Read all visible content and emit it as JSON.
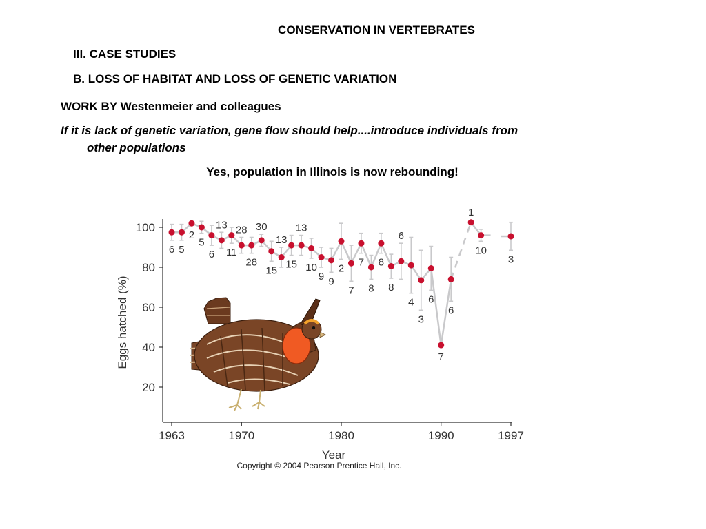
{
  "slide": {
    "title": "CONSERVATION IN VERTEBRATES",
    "section": "III. CASE STUDIES",
    "subsection": "B. LOSS OF HABITAT AND LOSS OF GENETIC VARIATION",
    "work_line": "WORK BY Westenmeier and colleagues",
    "italic_line1": "If it is lack of genetic variation, gene flow should help....introduce individuals from",
    "italic_line2": "other populations",
    "conclusion": "Yes, population in Illinois is now rebounding!"
  },
  "chart_data": {
    "type": "scatter",
    "title": "",
    "xlabel": "Year",
    "ylabel": "Eggs hatched (%)",
    "xlim": [
      1963,
      1997
    ],
    "ylim": [
      10,
      106
    ],
    "x_ticks": [
      1963,
      1970,
      1980,
      1990,
      1997
    ],
    "y_ticks": [
      20,
      40,
      60,
      80,
      100
    ],
    "copyright": "Copyright © 2004 Pearson Prentice Hall, Inc.",
    "illustration": "prairie-chicken-illustration",
    "colors": {
      "point": "#c8102e",
      "line": "#c9c9cb",
      "axis": "#333333"
    },
    "points": [
      {
        "x": 1963,
        "y": 97.5,
        "n": "6",
        "label_pos": "below",
        "err": 4
      },
      {
        "x": 1964,
        "y": 97.5,
        "n": "5",
        "label_pos": "below",
        "err": 4
      },
      {
        "x": 1965,
        "y": 102,
        "n": "2",
        "label_pos": "below",
        "err": 0
      },
      {
        "x": 1966,
        "y": 100,
        "n": "5",
        "label_pos": "below",
        "err": 3
      },
      {
        "x": 1967,
        "y": 96,
        "n": "6",
        "label_pos": "below",
        "err": 5
      },
      {
        "x": 1968,
        "y": 93.5,
        "n": "13",
        "label_pos": "above",
        "err": 4
      },
      {
        "x": 1969,
        "y": 96,
        "n": "11",
        "label_pos": "below",
        "err": 4
      },
      {
        "x": 1970,
        "y": 91,
        "n": "28",
        "label_pos": "above",
        "err": 4
      },
      {
        "x": 1971,
        "y": 91,
        "n": "28",
        "label_pos": "below",
        "err": 4
      },
      {
        "x": 1972,
        "y": 93.5,
        "n": "30",
        "label_pos": "above",
        "err": 3
      },
      {
        "x": 1973,
        "y": 88,
        "n": "15",
        "label_pos": "below",
        "err": 5
      },
      {
        "x": 1974,
        "y": 85,
        "n": "13",
        "label_pos": "above",
        "err": 5
      },
      {
        "x": 1975,
        "y": 91,
        "n": "15",
        "label_pos": "below",
        "err": 5
      },
      {
        "x": 1976,
        "y": 91,
        "n": "13",
        "label_pos": "above",
        "err": 5
      },
      {
        "x": 1977,
        "y": 89.5,
        "n": "10",
        "label_pos": "below",
        "err": 5
      },
      {
        "x": 1978,
        "y": 85,
        "n": "9",
        "label_pos": "below",
        "err": 5
      },
      {
        "x": 1979,
        "y": 83.5,
        "n": "9",
        "label_pos": "below",
        "err": 6
      },
      {
        "x": 1980,
        "y": 93,
        "n": "2",
        "label_pos": "below",
        "err": 9
      },
      {
        "x": 1981,
        "y": 82,
        "n": "7",
        "label_pos": "below",
        "err": 9
      },
      {
        "x": 1982,
        "y": 92,
        "n": "7",
        "label_pos": "below",
        "err": 5
      },
      {
        "x": 1983,
        "y": 80,
        "n": "8",
        "label_pos": "below",
        "err": 6
      },
      {
        "x": 1984,
        "y": 92,
        "n": "8",
        "label_pos": "below",
        "err": 5
      },
      {
        "x": 1985,
        "y": 80.5,
        "n": "8",
        "label_pos": "below",
        "err": 6
      },
      {
        "x": 1986,
        "y": 83,
        "n": "6",
        "label_pos": "above",
        "err": 9
      },
      {
        "x": 1987,
        "y": 81,
        "n": "4",
        "label_pos": "below",
        "err": 14
      },
      {
        "x": 1988,
        "y": 73.5,
        "n": "3",
        "label_pos": "below",
        "err": 15
      },
      {
        "x": 1989,
        "y": 79.5,
        "n": "6",
        "label_pos": "below",
        "err": 11
      },
      {
        "x": 1990,
        "y": 41,
        "n": "7",
        "label_pos": "below",
        "err": 0
      },
      {
        "x": 1991,
        "y": 74,
        "n": "6",
        "label_pos": "below",
        "err": 11
      },
      {
        "x": 1993,
        "y": 102.5,
        "n": "1",
        "label_pos": "above",
        "err": 0
      },
      {
        "x": 1994,
        "y": 96,
        "n": "10",
        "label_pos": "below",
        "err": 3
      },
      {
        "x": 1997,
        "y": 95.5,
        "n": "3",
        "label_pos": "below",
        "err": 7
      }
    ]
  }
}
